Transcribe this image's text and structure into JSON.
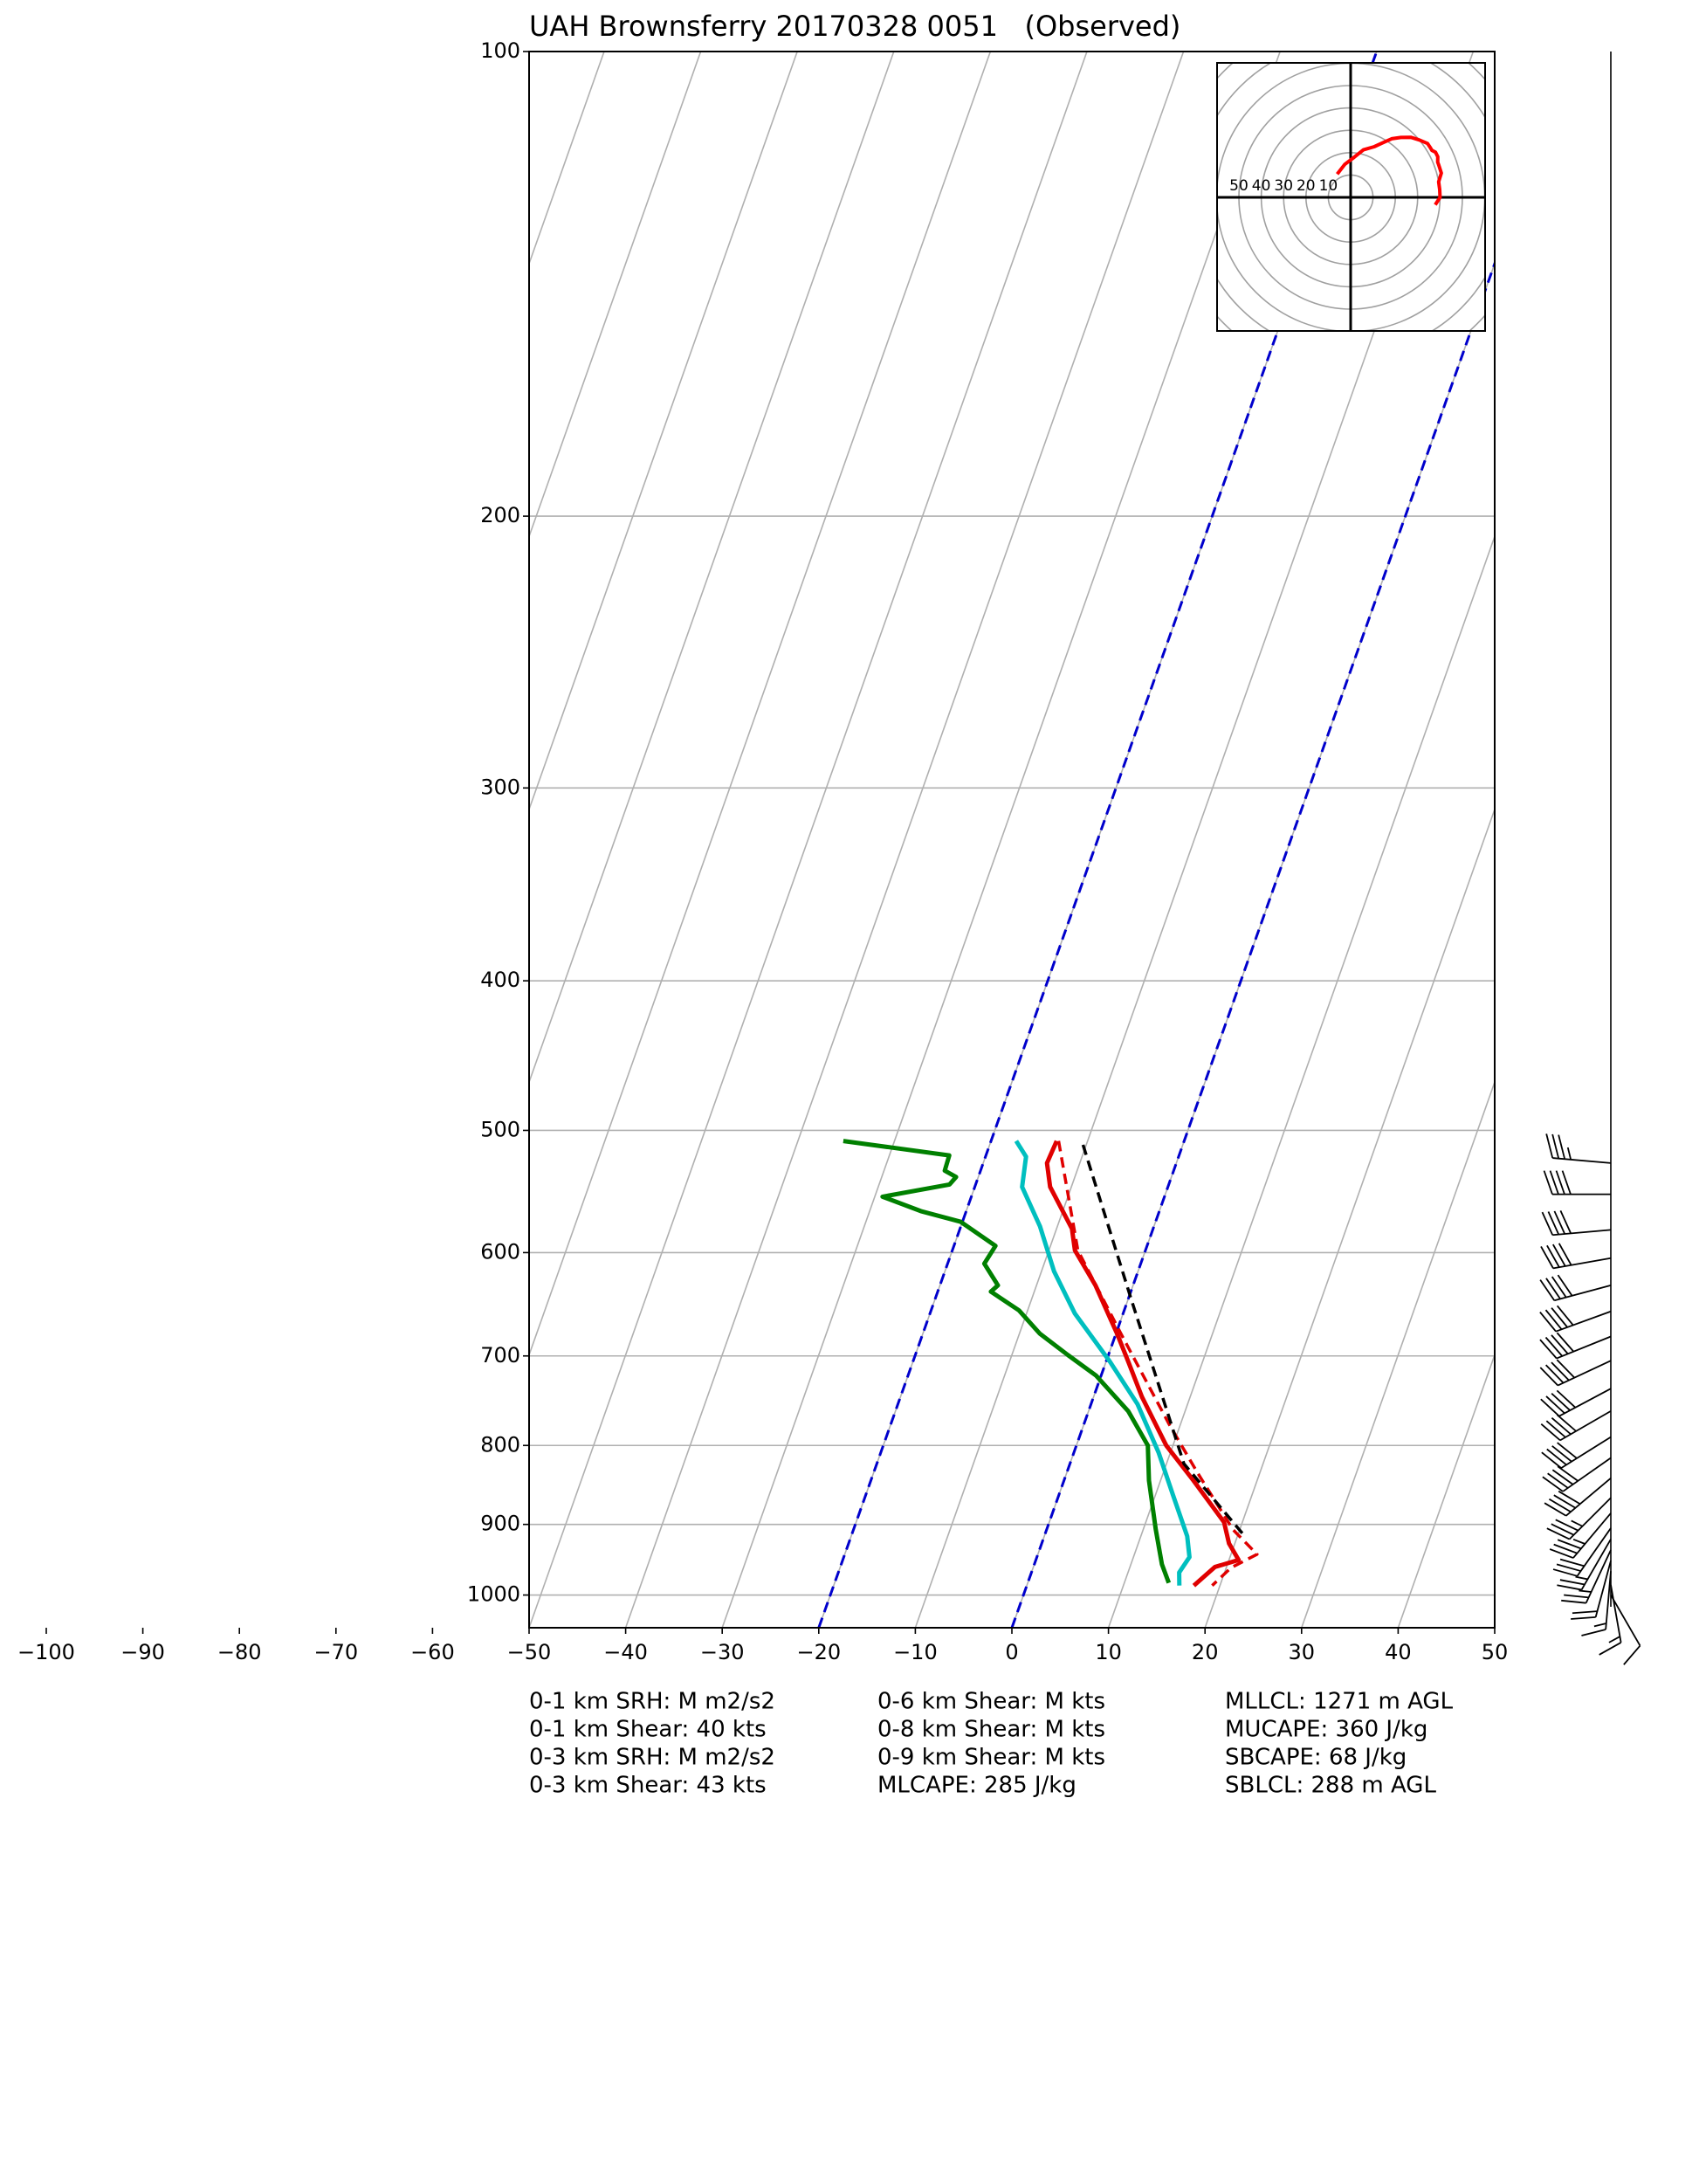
{
  "chart_data": {
    "type": "skewt",
    "title": "UAH Brownsferry 20170328 0051   (Observed)",
    "xlim": [
      -50,
      50
    ],
    "ylim": [
      1050,
      100
    ],
    "log_y": true,
    "grid": true,
    "xticks": [
      {
        "value": -100,
        "label": "−100"
      },
      {
        "value": -90,
        "label": "−90"
      },
      {
        "value": -80,
        "label": "−80"
      },
      {
        "value": -70,
        "label": "−70"
      },
      {
        "value": -60,
        "label": "−60"
      },
      {
        "value": -50,
        "label": "−50"
      },
      {
        "value": -40,
        "label": "−40"
      },
      {
        "value": -30,
        "label": "−30"
      },
      {
        "value": -20,
        "label": "−20"
      },
      {
        "value": -10,
        "label": "−10"
      },
      0,
      10,
      20,
      30,
      40,
      50
    ],
    "yticks": [
      100,
      200,
      300,
      400,
      500,
      600,
      700,
      800,
      900,
      1000
    ],
    "dashed_isotherms": [
      -20,
      0
    ],
    "dashed_isotherm_color": "#0000cc",
    "series": [
      {
        "color": "#e00000",
        "dash": false,
        "p": [
          508,
          525,
          544,
          579,
          598,
          630,
          677,
          706,
          744,
          800,
          843,
          897,
          926,
          949,
          959,
          986
        ],
        "values": [
          -13.2,
          -13.4,
          -12.2,
          -8.4,
          -7.3,
          -3.9,
          0.1,
          2.3,
          5.0,
          9.3,
          13.4,
          18.1,
          19.4,
          21.0,
          18.8,
          17.3
        ]
      },
      {
        "color": "#008000",
        "dash": false,
        "p": [
          508,
          519,
          531,
          536,
          542,
          552,
          564,
          573,
          594,
          610,
          630,
          636,
          654,
          677,
          699,
          721,
          760,
          800,
          843,
          907,
          955,
          982
        ],
        "values": [
          -35.3,
          -23.8,
          -23.7,
          -22.3,
          -22.7,
          -29.2,
          -24.7,
          -20.2,
          -15.7,
          -16.2,
          -14.0,
          -14.5,
          -10.9,
          -7.9,
          -4.2,
          -0.5,
          4.1,
          7.4,
          8.8,
          11.3,
          13.2,
          14.6
        ]
      },
      {
        "color": "#00bfbf",
        "dash": false,
        "p": [
          508,
          520,
          544,
          577,
          617,
          657,
          706,
          752,
          809,
          861,
          916,
          945,
          967,
          986
        ],
        "values": [
          -17.4,
          -15.8,
          -15.1,
          -11.8,
          -8.7,
          -5.0,
          0.4,
          4.8,
          8.8,
          11.8,
          14.8,
          15.8,
          15.3,
          15.8
        ]
      },
      {
        "color": "#e00000",
        "dash": true,
        "p": [
          508,
          598,
          677,
          776,
          834,
          907,
          941,
          960,
          986
        ],
        "values": [
          -13.0,
          -7.0,
          0.5,
          8.9,
          13.6,
          19.3,
          22.7,
          20.5,
          19.2
        ]
      },
      {
        "color": "#000000",
        "dash": true,
        "p": [
          912,
          822,
          643,
          509
        ],
        "values": [
          20.4,
          11.8,
          0.3,
          -10.5
        ]
      }
    ],
    "wind": {
      "p": [
        1000,
        985,
        965,
        950,
        935,
        920,
        905,
        885,
        865,
        840,
        815,
        790,
        760,
        735,
        705,
        680,
        655,
        630,
        605,
        580,
        550,
        525
      ],
      "direction": [
        150,
        170,
        185,
        195,
        205,
        210,
        215,
        220,
        225,
        230,
        235,
        238,
        240,
        242,
        245,
        248,
        250,
        255,
        260,
        265,
        270,
        275
      ],
      "speed": [
        12,
        15,
        18,
        22,
        25,
        28,
        32,
        35,
        38,
        40,
        42,
        42,
        42,
        43,
        43,
        42,
        42,
        42,
        40,
        40,
        40,
        38
      ]
    },
    "hodograph": {
      "color": "#ff0000",
      "rings": [
        10,
        20,
        30,
        40,
        50
      ],
      "outer_rings": [
        60,
        70,
        80
      ]
    },
    "stats": [
      [
        "0-1 km SRH: M m2/s2",
        "0-1 km Shear: 40 kts",
        "0-3 km SRH: M m2/s2",
        "0-3 km Shear: 43 kts"
      ],
      [
        "0-6 km Shear: M kts",
        "0-8 km Shear: M kts",
        "0-9 km Shear: M kts",
        "MLCAPE: 285 J/kg"
      ],
      [
        "MLLCL: 1271 m AGL",
        "MUCAPE: 360 J/kg",
        "SBCAPE: 68 J/kg",
        "SBLCL: 288 m AGL"
      ]
    ]
  }
}
